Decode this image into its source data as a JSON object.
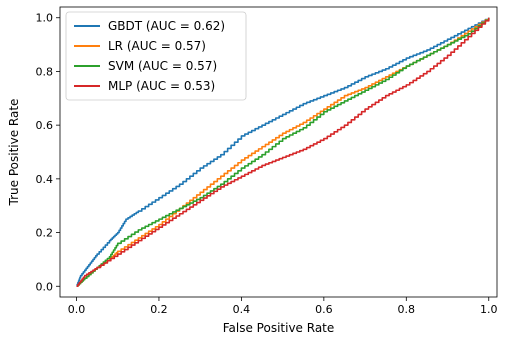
{
  "chart_data": {
    "type": "line",
    "xlabel": "False Positive Rate",
    "ylabel": "True Positive Rate",
    "xlim": [
      -0.04,
      1.02
    ],
    "ylim": [
      -0.04,
      1.04
    ],
    "x_ticks": [
      0.0,
      0.2,
      0.4,
      0.6,
      0.8,
      1.0
    ],
    "y_ticks": [
      0.0,
      0.2,
      0.4,
      0.6,
      0.8,
      1.0
    ],
    "x_tick_labels": [
      "0.0",
      "0.2",
      "0.4",
      "0.6",
      "0.8",
      "1.0"
    ],
    "y_tick_labels": [
      "0.0",
      "0.2",
      "0.4",
      "0.6",
      "0.8",
      "1.0"
    ],
    "grid": false,
    "legend_position": "top-left",
    "series": [
      {
        "name": "GBDT (AUC = 0.62)",
        "color": "#1f77b4",
        "x": [
          0,
          0.01,
          0.03,
          0.05,
          0.08,
          0.1,
          0.12,
          0.15,
          0.2,
          0.25,
          0.3,
          0.35,
          0.4,
          0.45,
          0.5,
          0.55,
          0.6,
          0.65,
          0.7,
          0.75,
          0.8,
          0.85,
          0.9,
          0.95,
          1.0
        ],
        "y": [
          0,
          0.04,
          0.08,
          0.12,
          0.17,
          0.2,
          0.25,
          0.28,
          0.33,
          0.38,
          0.44,
          0.49,
          0.56,
          0.6,
          0.64,
          0.68,
          0.71,
          0.74,
          0.78,
          0.81,
          0.85,
          0.88,
          0.92,
          0.96,
          1.0
        ]
      },
      {
        "name": "LR (AUC = 0.57)",
        "color": "#ff7f0e",
        "x": [
          0,
          0.02,
          0.05,
          0.08,
          0.1,
          0.15,
          0.2,
          0.25,
          0.3,
          0.35,
          0.4,
          0.45,
          0.5,
          0.55,
          0.6,
          0.65,
          0.7,
          0.75,
          0.8,
          0.85,
          0.9,
          0.95,
          1.0
        ],
        "y": [
          0,
          0.03,
          0.07,
          0.1,
          0.13,
          0.18,
          0.23,
          0.29,
          0.35,
          0.41,
          0.47,
          0.52,
          0.57,
          0.61,
          0.66,
          0.71,
          0.74,
          0.78,
          0.82,
          0.86,
          0.9,
          0.95,
          1.0
        ]
      },
      {
        "name": "SVM (AUC = 0.57)",
        "color": "#2ca02c",
        "x": [
          0,
          0.02,
          0.05,
          0.08,
          0.1,
          0.15,
          0.2,
          0.25,
          0.3,
          0.35,
          0.4,
          0.45,
          0.5,
          0.55,
          0.6,
          0.65,
          0.7,
          0.75,
          0.8,
          0.85,
          0.9,
          0.95,
          1.0
        ],
        "y": [
          0,
          0.03,
          0.07,
          0.11,
          0.16,
          0.21,
          0.25,
          0.29,
          0.33,
          0.38,
          0.44,
          0.49,
          0.55,
          0.59,
          0.65,
          0.69,
          0.73,
          0.77,
          0.82,
          0.86,
          0.9,
          0.94,
          1.0
        ]
      },
      {
        "name": "MLP (AUC = 0.53)",
        "color": "#d62728",
        "x": [
          0,
          0.02,
          0.05,
          0.1,
          0.15,
          0.2,
          0.25,
          0.3,
          0.35,
          0.4,
          0.45,
          0.5,
          0.55,
          0.6,
          0.65,
          0.7,
          0.75,
          0.8,
          0.85,
          0.9,
          0.95,
          1.0
        ],
        "y": [
          0,
          0.04,
          0.07,
          0.12,
          0.17,
          0.22,
          0.27,
          0.32,
          0.37,
          0.41,
          0.45,
          0.48,
          0.51,
          0.55,
          0.6,
          0.66,
          0.71,
          0.75,
          0.8,
          0.86,
          0.93,
          1.0
        ]
      }
    ]
  }
}
